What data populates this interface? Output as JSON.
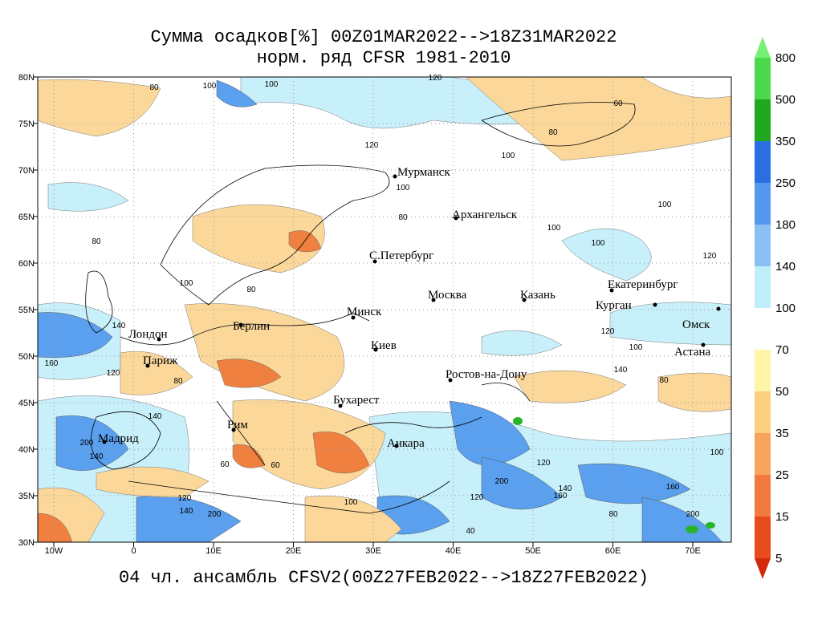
{
  "title": [
    "Сумма осадков[%] 00Z01MAR2022-->18Z31MAR2022",
    "норм. ряд CFSR 1981-2010"
  ],
  "footer": "04 чл. ансамбль CFSV2(00Z27FEB2022-->18Z27FEB2022)",
  "lat_labels": [
    "80N",
    "75N",
    "70N",
    "65N",
    "60N",
    "55N",
    "50N",
    "45N",
    "40N",
    "35N",
    "30N"
  ],
  "lon_labels": [
    "10W",
    "0",
    "10E",
    "20E",
    "30E",
    "40E",
    "50E",
    "60E",
    "70E"
  ],
  "cities": [
    "Мурманск",
    "Архангельск",
    "С.Петербург",
    "Москва",
    "Казань",
    "Екатеринбург",
    "Курган",
    "Омск",
    "Астана",
    "Минск",
    "Киев",
    "Берлин",
    "Лондон",
    "Париж",
    "Ростов-на-Дону",
    "Бухарест",
    "Рим",
    "Мадрид",
    "Анкара"
  ],
  "contour_labels": [
    80,
    100,
    100,
    120,
    60,
    80,
    100,
    120,
    80,
    100,
    80,
    100,
    80,
    100,
    100,
    120,
    100,
    120,
    100,
    140,
    80,
    160,
    140,
    120,
    80,
    140,
    200,
    140,
    60,
    60,
    120,
    140,
    200,
    100,
    120,
    200,
    140,
    160,
    80,
    200,
    40,
    160,
    100,
    120
  ],
  "colorbar": {
    "labels": [
      800,
      500,
      350,
      250,
      180,
      140,
      100,
      70,
      50,
      35,
      25,
      15,
      5
    ],
    "colors": [
      "#78f078",
      "#4cd84c",
      "#20a820",
      "#2a6fe0",
      "#5598ee",
      "#8cc0f5",
      "#bdeefa",
      "#ffffff",
      "#fff5a8",
      "#fbd080",
      "#f7a55a",
      "#f27a3c",
      "#e84c1e",
      "#d42a0c"
    ]
  }
}
